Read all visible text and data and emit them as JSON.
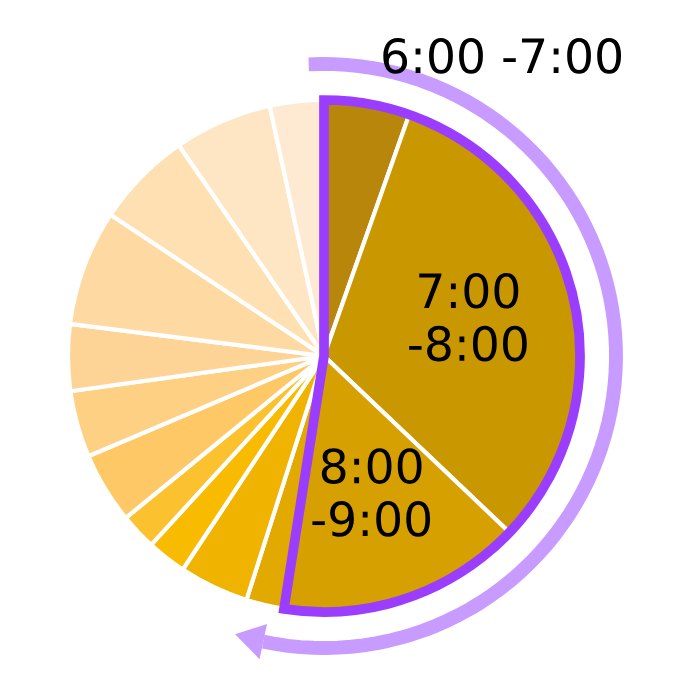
{
  "chart_data": {
    "type": "pie",
    "categories": [
      "6:00 -7:00",
      "7:00\n-8:00",
      "8:00\n-9:00",
      null,
      null,
      null,
      null,
      null,
      null,
      null,
      null,
      null,
      null,
      null
    ],
    "values": [
      5.4,
      31.7,
      15.4,
      2.4,
      4.4,
      2.5,
      2.3,
      4.5,
      4.2,
      4.2,
      7.3,
      6.1,
      6.2,
      3.4
    ],
    "colors": [
      "#b8860b",
      "#c99700",
      "#d6a000",
      "#e2a900",
      "#efb300",
      "#f8bb00",
      "#fcc12e",
      "#fdc865",
      "#fdd084",
      "#fdd495",
      "#fed9a2",
      "#fee0b2",
      "#fee6c4",
      "#fee9d2"
    ]
  }
}
